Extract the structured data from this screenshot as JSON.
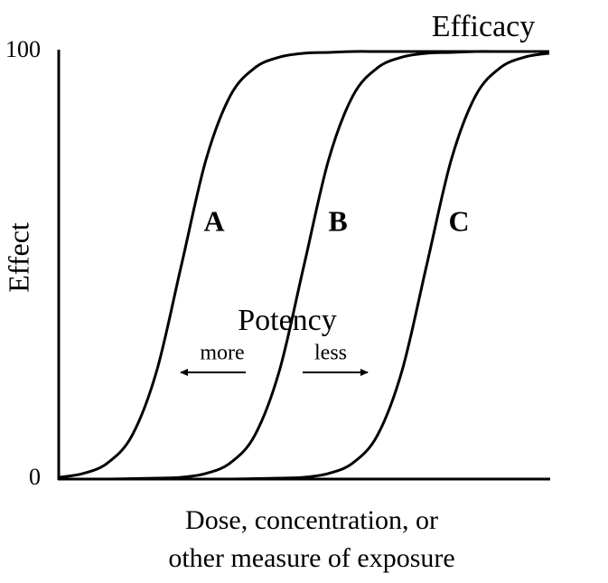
{
  "chart_data": {
    "type": "line",
    "y_label": "Effect",
    "x_label_lines": [
      "Dose, concentration, or",
      "other measure of exposure"
    ],
    "annotations": {
      "efficacy": "Efficacy",
      "potency": "Potency",
      "more": "more",
      "less": "less"
    },
    "x": [
      0,
      0.5,
      1,
      1.5,
      2,
      2.5,
      3,
      3.5,
      4,
      4.5,
      5,
      5.5,
      6,
      6.5,
      7,
      7.5,
      8,
      8.5,
      9,
      9.5,
      10
    ],
    "xlim": [
      0,
      10
    ],
    "ylim": [
      0,
      100
    ],
    "yticks": [
      0,
      100
    ],
    "series": [
      {
        "name": "A",
        "color": "#000000",
        "values": [
          0.4,
          1.3,
          3.8,
          10.3,
          25.4,
          50,
          74.6,
          89.7,
          96.2,
          98.7,
          99.6,
          99.8,
          100,
          100,
          100,
          100,
          100,
          100,
          100,
          100,
          100
        ]
      },
      {
        "name": "B",
        "color": "#000000",
        "values": [
          0,
          0,
          0,
          0.1,
          0.2,
          0.4,
          1.3,
          3.8,
          10.3,
          25.4,
          50,
          74.6,
          89.7,
          96.2,
          98.7,
          99.6,
          99.8,
          100,
          100,
          100,
          100
        ]
      },
      {
        "name": "C",
        "color": "#000000",
        "values": [
          0,
          0,
          0,
          0,
          0,
          0,
          0,
          0,
          0.1,
          0.2,
          0.4,
          1.3,
          3.8,
          10.3,
          25.4,
          50,
          74.6,
          89.7,
          96.2,
          98.7,
          99.6
        ]
      }
    ]
  }
}
